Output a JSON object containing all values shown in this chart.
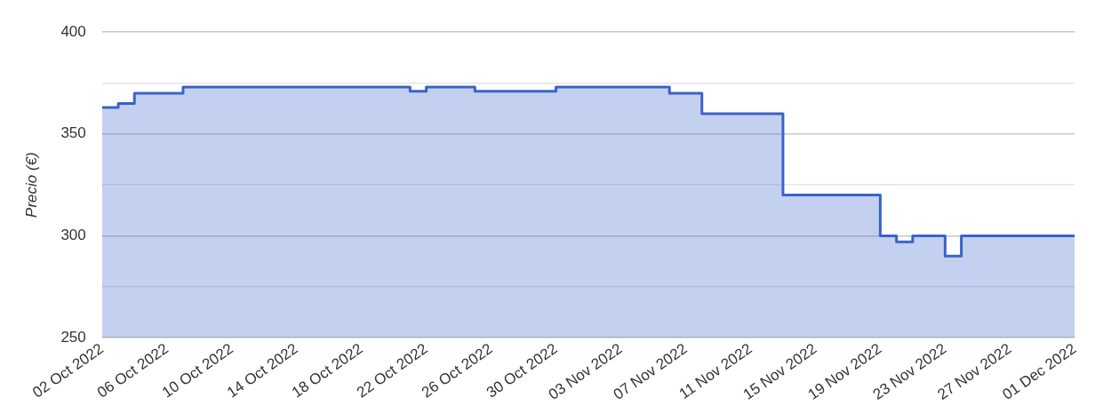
{
  "chart_data": {
    "type": "area",
    "ylabel": "Precio (€)",
    "x": [
      "2022-10-02",
      "2022-10-03",
      "2022-10-03",
      "2022-10-04",
      "2022-10-04",
      "2022-10-07",
      "2022-10-07",
      "2022-10-21",
      "2022-10-21",
      "2022-10-22",
      "2022-10-22",
      "2022-10-25",
      "2022-10-25",
      "2022-10-30",
      "2022-10-30",
      "2022-11-06",
      "2022-11-06",
      "2022-11-08",
      "2022-11-08",
      "2022-11-13",
      "2022-11-13",
      "2022-11-19",
      "2022-11-19",
      "2022-11-20",
      "2022-11-20",
      "2022-11-21",
      "2022-11-21",
      "2022-11-23",
      "2022-11-23",
      "2022-11-24",
      "2022-11-24",
      "2022-12-01"
    ],
    "series": [
      {
        "color": "#3a63c9",
        "values": [
          363,
          363,
          365,
          365,
          370,
          370,
          373,
          373,
          371,
          371,
          373,
          373,
          371,
          371,
          373,
          373,
          370,
          370,
          360,
          360,
          320,
          320,
          300,
          300,
          297,
          297,
          300,
          300,
          290,
          290,
          300,
          300
        ]
      }
    ],
    "xlim": [
      "2022-10-02",
      "2022-12-01"
    ],
    "xticks": [
      {
        "value": "2022-10-02",
        "label": "02 Oct 2022"
      },
      {
        "value": "2022-10-06",
        "label": "06 Oct 2022"
      },
      {
        "value": "2022-10-10",
        "label": "10 Oct 2022"
      },
      {
        "value": "2022-10-14",
        "label": "14 Oct 2022"
      },
      {
        "value": "2022-10-18",
        "label": "18 Oct 2022"
      },
      {
        "value": "2022-10-22",
        "label": "22 Oct 2022"
      },
      {
        "value": "2022-10-26",
        "label": "26 Oct 2022"
      },
      {
        "value": "2022-10-30",
        "label": "30 Oct 2022"
      },
      {
        "value": "2022-11-03",
        "label": "03 Nov 2022"
      },
      {
        "value": "2022-11-07",
        "label": "07 Nov 2022"
      },
      {
        "value": "2022-11-11",
        "label": "11 Nov 2022"
      },
      {
        "value": "2022-11-15",
        "label": "15 Nov 2022"
      },
      {
        "value": "2022-11-19",
        "label": "19 Nov 2022"
      },
      {
        "value": "2022-11-23",
        "label": "23 Nov 2022"
      },
      {
        "value": "2022-11-27",
        "label": "27 Nov 2022"
      },
      {
        "value": "2022-12-01",
        "label": "01 Dec 2022"
      }
    ],
    "ylim": [
      250,
      400
    ],
    "yticks": [
      250,
      {
        "value": 275,
        "label": null
      },
      300,
      {
        "value": 325,
        "label": null
      },
      350,
      {
        "value": 375,
        "label": null
      },
      400
    ],
    "grid": "y",
    "legend": false
  }
}
